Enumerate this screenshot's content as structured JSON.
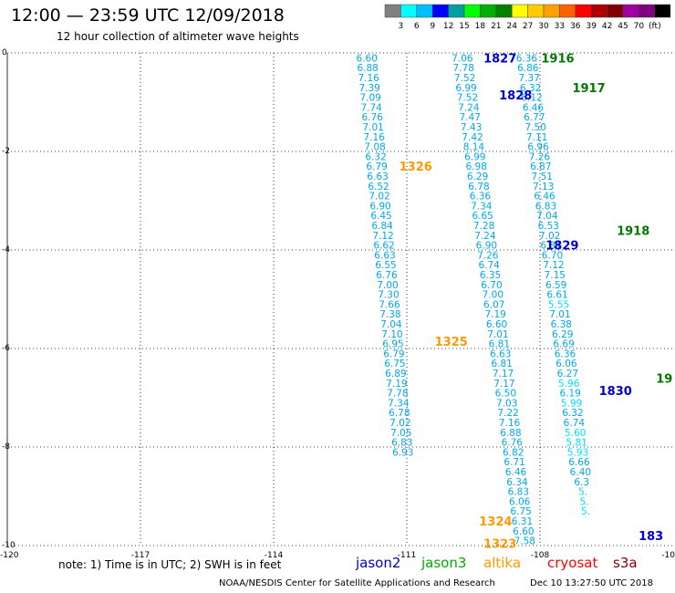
{
  "header": {
    "title": "12:00 — 23:59 UTC 12/09/2018",
    "subtitle": "12 hour collection of altimeter wave heights"
  },
  "legend": {
    "colors": [
      "#808080",
      "#00ffff",
      "#00bfff",
      "#0000ff",
      "#00a0a0",
      "#00ff00",
      "#00b000",
      "#008000",
      "#ffff00",
      "#ffcc00",
      "#ffa000",
      "#ff6000",
      "#ff0000",
      "#b00000",
      "#800000",
      "#a000a0",
      "#800080",
      "#000000"
    ],
    "labels": [
      "3",
      "6",
      "9",
      "12",
      "15",
      "18",
      "21",
      "24",
      "27",
      "30",
      "33",
      "36",
      "39",
      "42",
      "45",
      "70",
      "(ft)"
    ]
  },
  "map": {
    "x_ticks": [
      "-120",
      "-117",
      "-114",
      "-111",
      "-108",
      "-10"
    ],
    "y_ticks": [
      "0",
      "-2",
      "-4",
      "-6",
      "-8",
      "-10"
    ]
  },
  "chart_data": {
    "type": "scatter",
    "xlim": [
      -120,
      -105
    ],
    "ylim": [
      -10,
      0
    ],
    "units": "ft",
    "passes": [
      {
        "lon0": -111.9,
        "lat0": -0.1,
        "dx": 0.0275,
        "values": [
          "6.60",
          "6.88",
          "7.16",
          "7.39",
          "7.09",
          "7.74",
          "6.76",
          "7.01",
          "7.16",
          "7.08",
          "6.32",
          "6.79",
          "6.63",
          "6.52",
          "7.02",
          "6.90",
          "6.45",
          "6.84",
          "7.12",
          "6.62",
          "6.63",
          "6.55",
          "6.76",
          "7.00",
          "7.30",
          "7.66",
          "7.38",
          "7.04",
          "7.10",
          "6.95",
          "6.79",
          "6.75",
          "6.89",
          "7.19",
          "7.78",
          "7.34",
          "6.78",
          "7.02",
          "7.05",
          "6.83",
          "6.93"
        ]
      },
      {
        "lon0": -109.75,
        "lat0": -0.1,
        "dx": 0.0388,
        "values": [
          "7.06",
          "7.78",
          "7.52",
          "6.99",
          "7.52",
          "7.24",
          "7.47",
          "7.43",
          "7.42",
          "8.14",
          "6.99",
          "6.98",
          "6.29",
          "6.78",
          "6.36",
          "7.34",
          "6.65",
          "7.28",
          "7.24",
          "6.90",
          "7.26",
          "6.74",
          "6.35",
          "6.70",
          "7.00",
          "6.07",
          "7.19",
          "6.60",
          "7.01",
          "6.81",
          "6.63",
          "6.81",
          "7.17",
          "7.17",
          "6.50",
          "7.03",
          "7.22",
          "7.16",
          "6.88",
          "6.76",
          "6.82",
          "6.71",
          "6.46",
          "6.34",
          "6.83",
          "6.06",
          "6.75",
          "6.31",
          "6.60",
          "7.58",
          "6.89"
        ]
      },
      {
        "lon0": -108.3,
        "lat0": -0.1,
        "dx": 0.039,
        "values": [
          "6.36",
          "6.86",
          "7.37",
          "6.32",
          "6.12",
          "6.46",
          "6.77",
          "7.50",
          "7.11",
          "6.96",
          "7.26",
          "6.87",
          "7.51",
          "7.13",
          "6.46",
          "6.83",
          "7.04",
          "6.53",
          "7.02",
          "6.81",
          "6.70",
          "7.12",
          "7.15",
          "6.59",
          "6.61",
          "5.55",
          "7.01",
          "6.38",
          "6.29",
          "6.69",
          "6.36",
          "6.06",
          "6.27",
          "5.96",
          "6.19",
          "5.99",
          "6.32",
          "6.74",
          "5.60",
          "5.81",
          "5.93",
          "6.66",
          "6.40",
          "6.3",
          "5.",
          "5.",
          "5."
        ]
      }
    ],
    "time_labels": [
      {
        "text": "1827",
        "lon": -108.9,
        "lat": -0.1,
        "mission": "jason2"
      },
      {
        "text": "1828",
        "lon": -108.55,
        "lat": -0.85,
        "mission": "jason2"
      },
      {
        "text": "1829",
        "lon": -107.5,
        "lat": -3.9,
        "mission": "jason2"
      },
      {
        "text": "1830",
        "lon": -106.3,
        "lat": -6.85,
        "mission": "jason2"
      },
      {
        "text": "183",
        "lon": -105.5,
        "lat": -9.8,
        "mission": "jason2"
      },
      {
        "text": "1916",
        "lon": -107.6,
        "lat": -0.1,
        "mission": "jason3"
      },
      {
        "text": "1917",
        "lon": -106.9,
        "lat": -0.7,
        "mission": "jason3"
      },
      {
        "text": "1918",
        "lon": -105.9,
        "lat": -3.6,
        "mission": "jason3"
      },
      {
        "text": "19",
        "lon": -105.2,
        "lat": -6.6,
        "mission": "jason3"
      },
      {
        "text": "1326",
        "lon": -110.8,
        "lat": -2.3,
        "mission": "altika"
      },
      {
        "text": "1325",
        "lon": -110.0,
        "lat": -5.85,
        "mission": "altika"
      },
      {
        "text": "1324",
        "lon": -109.0,
        "lat": -9.5,
        "mission": "altika"
      },
      {
        "text": "1323",
        "lon": -108.9,
        "lat": -9.95,
        "mission": "altika"
      }
    ]
  },
  "missions": [
    {
      "name": "jason2",
      "color": "#0000cc"
    },
    {
      "name": "jason3",
      "color": "#00aa00"
    },
    {
      "name": "altika",
      "color": "#ff9900"
    },
    {
      "name": "cryosat",
      "color": "#ff0000"
    },
    {
      "name": "s3a",
      "color": "#880000"
    }
  ],
  "footer": {
    "note": "note: 1) Time is in UTC; 2) SWH is in feet",
    "credit": "NOAA/NESDIS Center for Satellite Applications and Research",
    "stamp": "Dec 10 13:27:50 UTC 2018"
  }
}
